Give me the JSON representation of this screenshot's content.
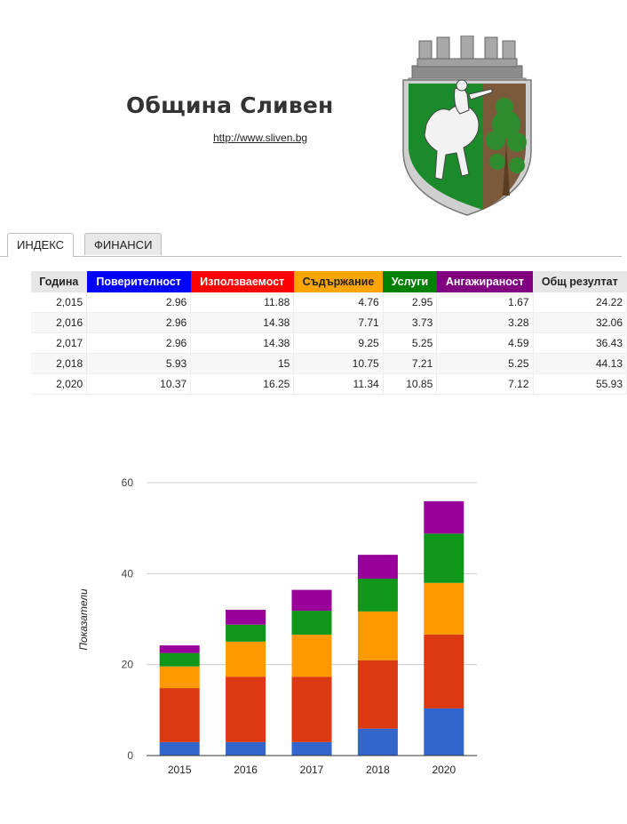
{
  "header": {
    "title": "Община Сливен",
    "url": "http://www.sliven.bg"
  },
  "tabs": [
    {
      "label": "ИНДЕКС",
      "active": true
    },
    {
      "label": "ФИНАНСИ",
      "active": false
    }
  ],
  "table": {
    "columns": [
      {
        "label": "Година",
        "bg": "#e6e6e6",
        "fg": "#222222"
      },
      {
        "label": "Поверителност",
        "bg": "#0000ff",
        "fg": "#ffffff"
      },
      {
        "label": "Използваемост",
        "bg": "#ff0000",
        "fg": "#ffffff"
      },
      {
        "label": "Съдържание",
        "bg": "#ffa500",
        "fg": "#222222"
      },
      {
        "label": "Услуги",
        "bg": "#008000",
        "fg": "#ffffff"
      },
      {
        "label": "Ангажираност",
        "bg": "#800080",
        "fg": "#ffffff"
      },
      {
        "label": "Общ резултат",
        "bg": "#e6e6e6",
        "fg": "#222222"
      }
    ],
    "rows": [
      [
        "2,015",
        "2.96",
        "11.88",
        "4.76",
        "2.95",
        "1.67",
        "24.22"
      ],
      [
        "2,016",
        "2.96",
        "14.38",
        "7.71",
        "3.73",
        "3.28",
        "32.06"
      ],
      [
        "2,017",
        "2.96",
        "14.38",
        "9.25",
        "5.25",
        "4.59",
        "36.43"
      ],
      [
        "2,018",
        "5.93",
        "15",
        "10.75",
        "7.21",
        "5.25",
        "44.13"
      ],
      [
        "2,020",
        "10.37",
        "16.25",
        "11.34",
        "10.85",
        "7.12",
        "55.93"
      ]
    ]
  },
  "chart_data": {
    "type": "bar",
    "stacked": true,
    "categories": [
      "2015",
      "2016",
      "2017",
      "2018",
      "2020"
    ],
    "series": [
      {
        "color": "#3366cc",
        "values": [
          2.96,
          2.96,
          2.96,
          5.93,
          10.37
        ]
      },
      {
        "color": "#dc3912",
        "values": [
          11.88,
          14.38,
          14.38,
          15,
          16.25
        ]
      },
      {
        "color": "#ff9900",
        "values": [
          4.76,
          7.71,
          9.25,
          10.75,
          11.34
        ]
      },
      {
        "color": "#109618",
        "values": [
          2.95,
          3.73,
          5.25,
          7.21,
          10.85
        ]
      },
      {
        "color": "#990099",
        "values": [
          1.67,
          3.28,
          4.59,
          5.25,
          7.12
        ]
      }
    ],
    "ylabel": "Показатели",
    "ylim": [
      0,
      60
    ],
    "yticks": [
      0,
      20,
      40,
      60
    ],
    "grid": true,
    "legend": "none"
  }
}
